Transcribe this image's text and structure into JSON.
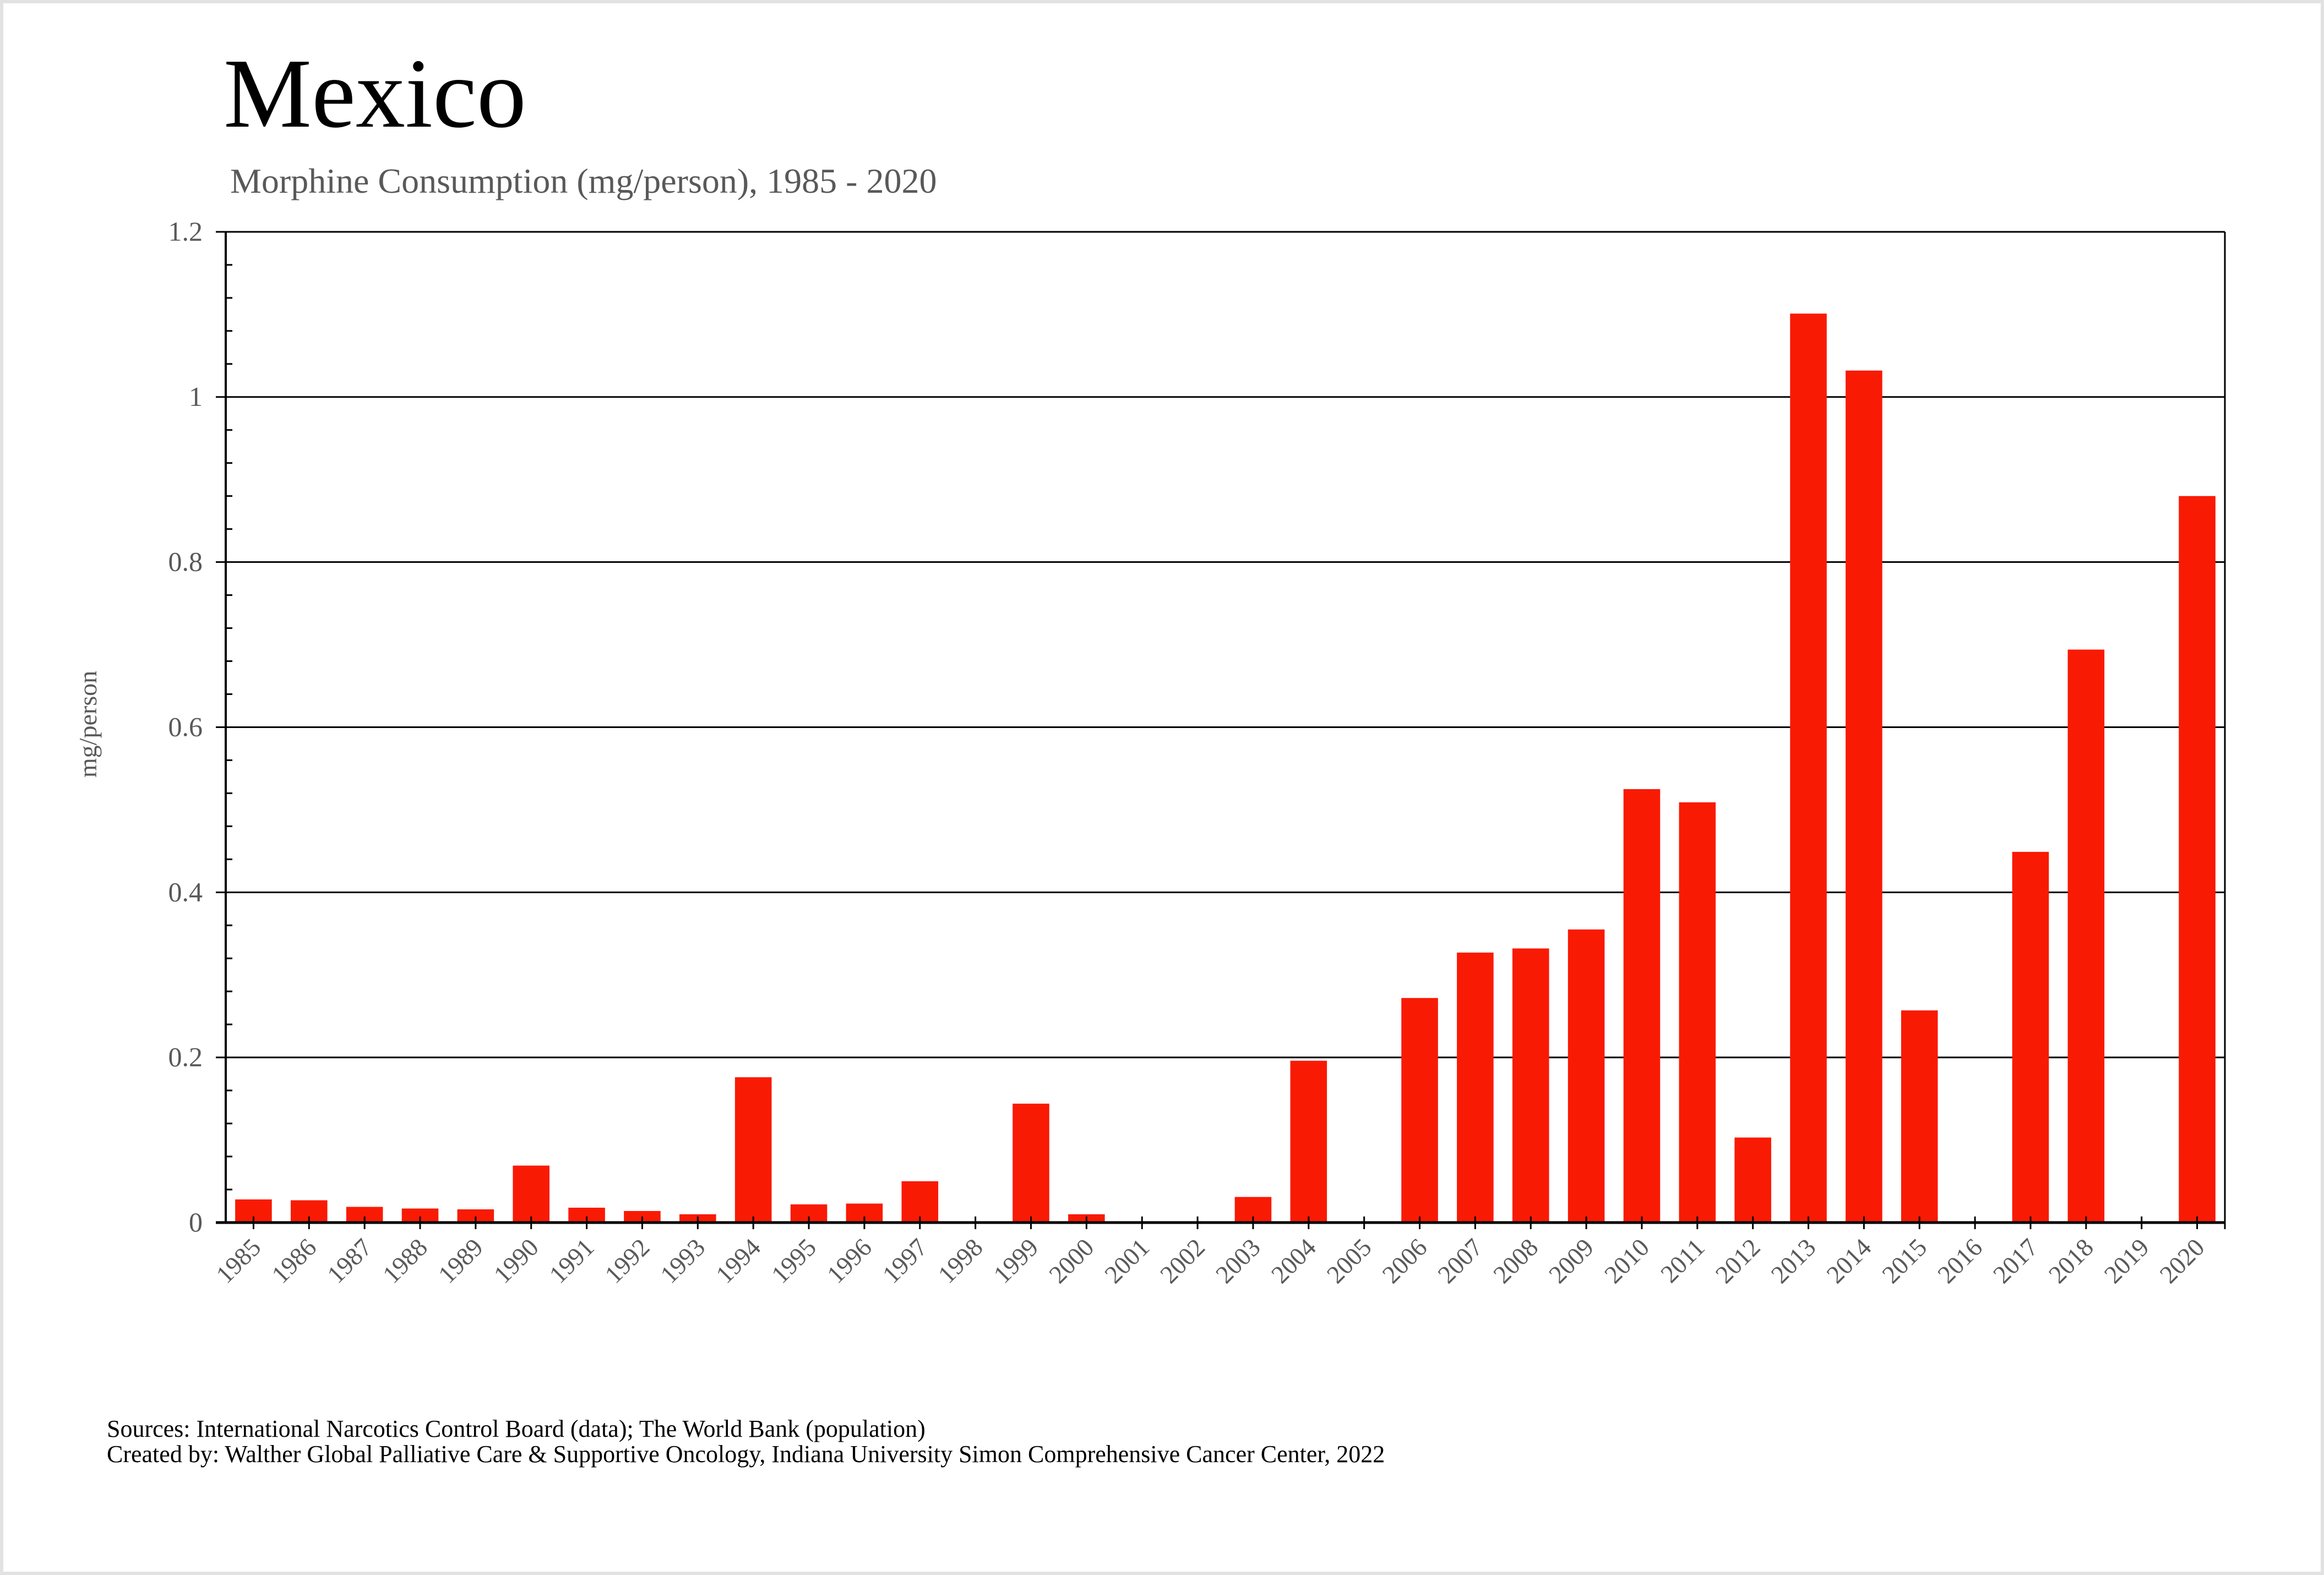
{
  "chart_data": {
    "type": "bar",
    "title": "Mexico",
    "subtitle": "Morphine Consumption (mg/person), 1985 - 2020",
    "xlabel": "",
    "ylabel": "mg/person",
    "ylim": [
      0,
      1.2
    ],
    "yticks": [
      "0",
      "0.2",
      "0.4",
      "0.6",
      "0.8",
      "1",
      "1.2"
    ],
    "ytick_values": [
      0,
      0.2,
      0.4,
      0.6,
      0.8,
      1.0,
      1.2
    ],
    "minor_ticks_per_major": 4,
    "grid": true,
    "legend": "none",
    "categories": [
      "1985",
      "1986",
      "1987",
      "1988",
      "1989",
      "1990",
      "1991",
      "1992",
      "1993",
      "1994",
      "1995",
      "1996",
      "1997",
      "1998",
      "1999",
      "2000",
      "2001",
      "2002",
      "2003",
      "2004",
      "2005",
      "2006",
      "2007",
      "2008",
      "2009",
      "2010",
      "2011",
      "2012",
      "2013",
      "2014",
      "2015",
      "2016",
      "2017",
      "2018",
      "2019",
      "2020"
    ],
    "values": [
      0.028,
      0.027,
      0.019,
      0.017,
      0.016,
      0.069,
      0.018,
      0.014,
      0.01,
      0.176,
      0.022,
      0.023,
      0.05,
      0,
      0.144,
      0.01,
      0,
      0,
      0.031,
      0.196,
      0,
      0.272,
      0.327,
      0.332,
      0.355,
      0.525,
      0.509,
      0.103,
      1.101,
      1.032,
      0.257,
      0,
      0.449,
      0.694,
      0,
      0.88
    ],
    "colors": {
      "bar": "#f91a04",
      "axis": "#000000",
      "tick_label": "#595959",
      "title": "#000000",
      "subtitle": "#595959"
    }
  },
  "footer": {
    "sources": "Sources: International Narcotics Control Board (data); The World Bank (population)",
    "created_by": "Created by: Walther  Global Palliative Care & Supportive Oncology, Indiana University Simon Comprehensive Cancer Center, 2022"
  }
}
